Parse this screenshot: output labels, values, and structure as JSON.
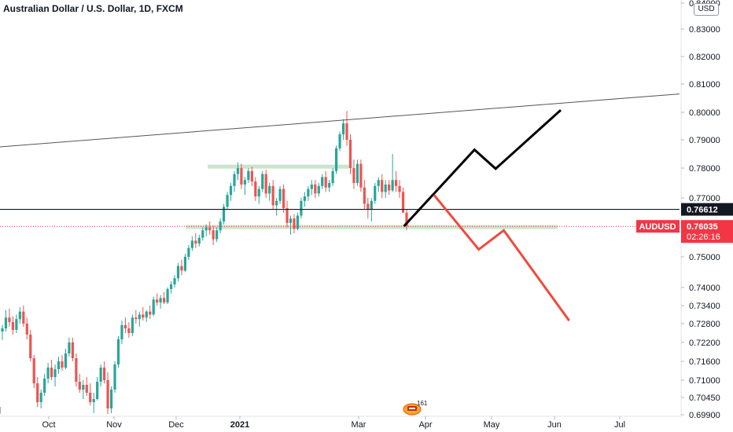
{
  "header": {
    "title": "Australian Dollar / U.S. Dollar, 1D, FXCM",
    "currency": "USD"
  },
  "badge": {
    "count": "161"
  },
  "colors": {
    "up": "#26a69a",
    "down": "#ef5350",
    "bullish_path": "#000000",
    "bearish_path": "#f04a3c",
    "zone": "#a5d6a7",
    "accent": "#f23645"
  },
  "chart_data": {
    "type": "candlestick",
    "title": "Australian Dollar / U.S. Dollar, 1D, FXCM",
    "y_ticks": [
      "0.84000",
      "0.83000",
      "0.82000",
      "0.81000",
      "0.80000",
      "0.79000",
      "0.78000",
      "0.77000",
      "0.75000",
      "0.74000",
      "0.73400",
      "0.72800",
      "0.72200",
      "0.71600",
      "0.71000",
      "0.70450",
      "0.69900"
    ],
    "x_ticks": [
      "Oct",
      "Nov",
      "Dec",
      "2021",
      "Mar",
      "Apr",
      "May",
      "Jun",
      "Jul"
    ],
    "price_labels": [
      {
        "text": "0.76612",
        "kind": "horizontal-line"
      },
      {
        "text": "AUDUSD",
        "kind": "symbol"
      },
      {
        "text": "0.76035",
        "kind": "last-price"
      },
      {
        "text": "02:26:16",
        "kind": "countdown"
      }
    ],
    "current_price": 0.76035,
    "horizontal_line": 0.76612,
    "support_zone": [
      0.7597,
      0.7608
    ],
    "resistance_zone": [
      0.7803,
      0.7812
    ],
    "trendline_upper": [
      [
        "Sep 2020",
        0.7875
      ],
      [
        "Jul 2021",
        0.8065
      ]
    ],
    "trendline_lower": [
      [
        "Sep 2020",
        0.7015
      ],
      [
        "Nov 2020",
        0.6993
      ]
    ],
    "projection_bullish": [
      [
        "Mar 22",
        0.7604
      ],
      [
        "Apr 24",
        0.7865
      ],
      [
        "May 3",
        0.7798
      ],
      [
        "Jun 4",
        0.8008
      ]
    ],
    "projection_bearish": [
      [
        "Apr 5",
        0.771
      ],
      [
        "Apr 26",
        0.7525
      ],
      [
        "May 7",
        0.759
      ],
      [
        "Jun 8",
        0.729
      ]
    ],
    "candles": [
      [
        0.7255,
        0.7275,
        0.7228,
        0.7265
      ],
      [
        0.7265,
        0.7325,
        0.7255,
        0.73
      ],
      [
        0.73,
        0.733,
        0.727,
        0.7285
      ],
      [
        0.7285,
        0.7305,
        0.7245,
        0.726
      ],
      [
        0.726,
        0.731,
        0.725,
        0.7295
      ],
      [
        0.7295,
        0.7335,
        0.728,
        0.732
      ],
      [
        0.732,
        0.734,
        0.727,
        0.728
      ],
      [
        0.728,
        0.73,
        0.723,
        0.7245
      ],
      [
        0.7245,
        0.726,
        0.716,
        0.717
      ],
      [
        0.717,
        0.718,
        0.7075,
        0.709
      ],
      [
        0.709,
        0.711,
        0.7015,
        0.703
      ],
      [
        0.703,
        0.707,
        0.701,
        0.706
      ],
      [
        0.706,
        0.712,
        0.705,
        0.7105
      ],
      [
        0.7105,
        0.7155,
        0.709,
        0.714
      ],
      [
        0.714,
        0.7165,
        0.71,
        0.711
      ],
      [
        0.711,
        0.715,
        0.708,
        0.7135
      ],
      [
        0.7135,
        0.7175,
        0.712,
        0.716
      ],
      [
        0.716,
        0.718,
        0.713,
        0.714
      ],
      [
        0.714,
        0.72,
        0.7135,
        0.7185
      ],
      [
        0.7185,
        0.7235,
        0.7175,
        0.722
      ],
      [
        0.722,
        0.7235,
        0.716,
        0.717
      ],
      [
        0.717,
        0.7185,
        0.708,
        0.7095
      ],
      [
        0.7095,
        0.712,
        0.706,
        0.707
      ],
      [
        0.707,
        0.71,
        0.704,
        0.7085
      ],
      [
        0.7085,
        0.711,
        0.705,
        0.706
      ],
      [
        0.706,
        0.709,
        0.702,
        0.703
      ],
      [
        0.703,
        0.706,
        0.6995,
        0.704
      ],
      [
        0.704,
        0.711,
        0.7035,
        0.7095
      ],
      [
        0.7095,
        0.715,
        0.708,
        0.714
      ],
      [
        0.714,
        0.716,
        0.709,
        0.71
      ],
      [
        0.71,
        0.7125,
        0.6992,
        0.701
      ],
      [
        0.701,
        0.708,
        0.6995,
        0.707
      ],
      [
        0.707,
        0.716,
        0.706,
        0.715
      ],
      [
        0.715,
        0.724,
        0.714,
        0.723
      ],
      [
        0.723,
        0.729,
        0.7215,
        0.7275
      ],
      [
        0.7275,
        0.73,
        0.725,
        0.7265
      ],
      [
        0.7265,
        0.7285,
        0.7235,
        0.725
      ],
      [
        0.725,
        0.731,
        0.724,
        0.73
      ],
      [
        0.73,
        0.7325,
        0.728,
        0.7295
      ],
      [
        0.7295,
        0.732,
        0.727,
        0.731
      ],
      [
        0.731,
        0.7335,
        0.729,
        0.73
      ],
      [
        0.73,
        0.7325,
        0.7285,
        0.732
      ],
      [
        0.732,
        0.734,
        0.7295,
        0.731
      ],
      [
        0.731,
        0.737,
        0.7305,
        0.736
      ],
      [
        0.736,
        0.738,
        0.734,
        0.735
      ],
      [
        0.735,
        0.7375,
        0.733,
        0.7365
      ],
      [
        0.7365,
        0.7385,
        0.7345,
        0.735
      ],
      [
        0.735,
        0.74,
        0.7345,
        0.7395
      ],
      [
        0.7395,
        0.742,
        0.738,
        0.741
      ],
      [
        0.741,
        0.744,
        0.74,
        0.743
      ],
      [
        0.743,
        0.748,
        0.742,
        0.747
      ],
      [
        0.747,
        0.749,
        0.744,
        0.7455
      ],
      [
        0.7455,
        0.751,
        0.745,
        0.75
      ],
      [
        0.75,
        0.754,
        0.749,
        0.753
      ],
      [
        0.753,
        0.757,
        0.752,
        0.7555
      ],
      [
        0.7555,
        0.758,
        0.753,
        0.7545
      ],
      [
        0.7545,
        0.7575,
        0.7535,
        0.7565
      ],
      [
        0.7565,
        0.76,
        0.7555,
        0.759
      ],
      [
        0.759,
        0.761,
        0.757,
        0.76
      ],
      [
        0.76,
        0.762,
        0.7575,
        0.759
      ],
      [
        0.759,
        0.7605,
        0.754,
        0.756
      ],
      [
        0.756,
        0.76,
        0.755,
        0.759
      ],
      [
        0.759,
        0.763,
        0.758,
        0.762
      ],
      [
        0.762,
        0.768,
        0.761,
        0.767
      ],
      [
        0.767,
        0.772,
        0.766,
        0.771
      ],
      [
        0.771,
        0.775,
        0.769,
        0.774
      ],
      [
        0.774,
        0.779,
        0.772,
        0.778
      ],
      [
        0.778,
        0.782,
        0.776,
        0.78
      ],
      [
        0.78,
        0.7815,
        0.773,
        0.7745
      ],
      [
        0.7745,
        0.777,
        0.771,
        0.776
      ],
      [
        0.776,
        0.78,
        0.775,
        0.779
      ],
      [
        0.779,
        0.7805,
        0.774,
        0.7755
      ],
      [
        0.7755,
        0.777,
        0.769,
        0.7705
      ],
      [
        0.7705,
        0.774,
        0.768,
        0.773
      ],
      [
        0.773,
        0.779,
        0.772,
        0.778
      ],
      [
        0.778,
        0.7795,
        0.77,
        0.7715
      ],
      [
        0.7715,
        0.775,
        0.769,
        0.774
      ],
      [
        0.774,
        0.776,
        0.766,
        0.7675
      ],
      [
        0.7675,
        0.77,
        0.764,
        0.769
      ],
      [
        0.769,
        0.774,
        0.768,
        0.773
      ],
      [
        0.773,
        0.7745,
        0.765,
        0.7665
      ],
      [
        0.7665,
        0.769,
        0.76,
        0.7615
      ],
      [
        0.7615,
        0.764,
        0.7575,
        0.763
      ],
      [
        0.763,
        0.7645,
        0.758,
        0.7595
      ],
      [
        0.7595,
        0.765,
        0.759,
        0.764
      ],
      [
        0.764,
        0.77,
        0.763,
        0.769
      ],
      [
        0.769,
        0.772,
        0.767,
        0.7705
      ],
      [
        0.7705,
        0.774,
        0.769,
        0.773
      ],
      [
        0.773,
        0.776,
        0.771,
        0.7745
      ],
      [
        0.7745,
        0.776,
        0.77,
        0.7715
      ],
      [
        0.7715,
        0.775,
        0.7705,
        0.774
      ],
      [
        0.774,
        0.778,
        0.773,
        0.777
      ],
      [
        0.777,
        0.779,
        0.772,
        0.7735
      ],
      [
        0.7735,
        0.776,
        0.772,
        0.775
      ],
      [
        0.775,
        0.78,
        0.774,
        0.779
      ],
      [
        0.779,
        0.788,
        0.778,
        0.787
      ],
      [
        0.787,
        0.793,
        0.786,
        0.792
      ],
      [
        0.792,
        0.7975,
        0.79,
        0.796
      ],
      [
        0.796,
        0.8005,
        0.788,
        0.79
      ],
      [
        0.79,
        0.792,
        0.778,
        0.78
      ],
      [
        0.78,
        0.783,
        0.773,
        0.775
      ],
      [
        0.775,
        0.783,
        0.774,
        0.7815
      ],
      [
        0.7815,
        0.783,
        0.772,
        0.7735
      ],
      [
        0.7735,
        0.776,
        0.766,
        0.768
      ],
      [
        0.768,
        0.77,
        0.763,
        0.766
      ],
      [
        0.766,
        0.77,
        0.762,
        0.769
      ],
      [
        0.769,
        0.775,
        0.768,
        0.774
      ],
      [
        0.774,
        0.777,
        0.772,
        0.776
      ],
      [
        0.776,
        0.778,
        0.77,
        0.772
      ],
      [
        0.772,
        0.776,
        0.77,
        0.7745
      ],
      [
        0.7745,
        0.776,
        0.771,
        0.7725
      ],
      [
        0.7725,
        0.785,
        0.772,
        0.776
      ],
      [
        0.776,
        0.779,
        0.772,
        0.774
      ],
      [
        0.774,
        0.776,
        0.77,
        0.772
      ],
      [
        0.772,
        0.7735,
        0.765,
        0.765
      ],
      [
        0.765,
        0.766,
        0.759,
        0.7604
      ]
    ]
  }
}
